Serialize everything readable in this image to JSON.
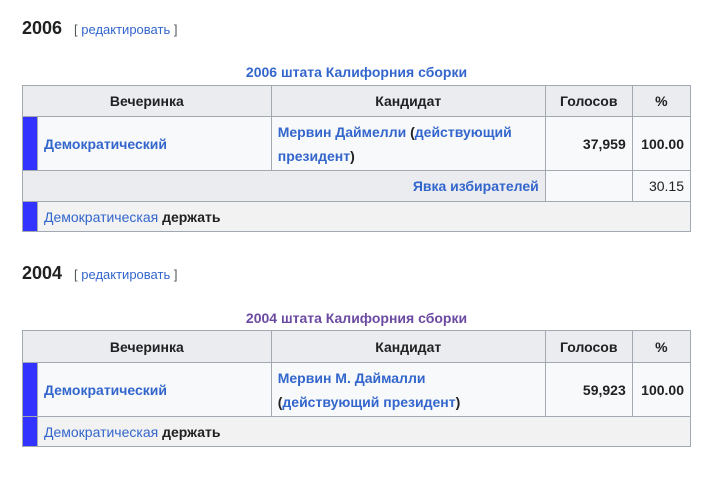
{
  "sections": [
    {
      "year": "2006",
      "edit_label": "редактировать",
      "caption": "2006 штата Калифорния сборки",
      "headers": [
        "Вечеринка",
        "Кандидат",
        "Голосов",
        "%"
      ],
      "row": {
        "party": "Демократический",
        "candidate": "Мервин Даймелли",
        "incumbent": "действующий президент",
        "votes": "37,959",
        "pct": "100.00"
      },
      "turnout": {
        "label": "Явка избирателей",
        "pct": "30.15"
      },
      "hold": {
        "party": "Демократическая",
        "text": "держать"
      }
    },
    {
      "year": "2004",
      "edit_label": "редактировать",
      "caption": "2004 штата Калифорния сборки",
      "headers": [
        "Вечеринка",
        "Кандидат",
        "Голосов",
        "%"
      ],
      "row": {
        "party": "Демократический",
        "candidate": "Мервин М. Даймалли",
        "incumbent": "действующий президент",
        "votes": "59,923",
        "pct": "100.00"
      },
      "hold": {
        "party": "Демократическая",
        "text": "держать"
      }
    }
  ],
  "colors": {
    "party_swatch": "#3333ff",
    "link": "#3366cc",
    "visited": "#6b4ba1"
  }
}
